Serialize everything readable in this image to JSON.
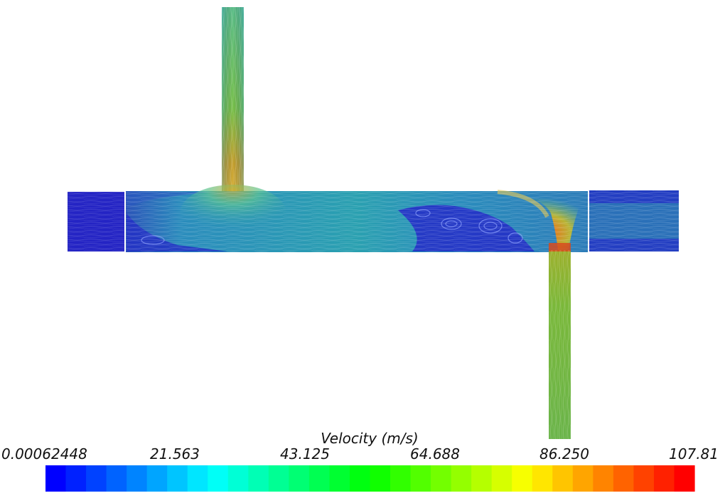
{
  "colorbar": {
    "title": "Velocity (m/s)",
    "min": 0.00062448,
    "max": 107.81,
    "tick_labels": [
      "0.00062448",
      "21.563",
      "43.125",
      "64.688",
      "86.250",
      "107.81"
    ],
    "segments": 32,
    "colormap": [
      "#0000ff",
      "#00ffff",
      "#00ff00",
      "#ffff00",
      "#ff0000"
    ]
  },
  "domain": {
    "background_color": "#ffffff",
    "low_velocity_color": "#1e24c8",
    "main_flow_color": "#2a86b4",
    "high_velocity_color": "#e05a18"
  }
}
